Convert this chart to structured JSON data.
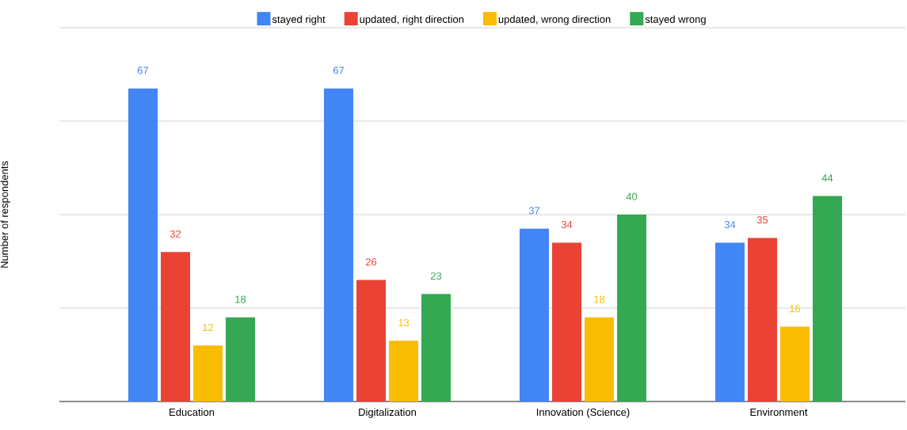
{
  "chart_data": {
    "type": "bar",
    "ylabel": "Number of respondents",
    "categories": [
      "Education",
      "Digitalization",
      "Innovation (Science)",
      "Environment"
    ],
    "series": [
      {
        "name": "stayed right",
        "color": "#4285f4",
        "values": [
          67,
          67,
          37,
          34
        ]
      },
      {
        "name": "updated, right direction",
        "color": "#ea4335",
        "values": [
          32,
          26,
          34,
          35
        ]
      },
      {
        "name": "updated, wrong direction",
        "color": "#fbbc04",
        "values": [
          12,
          13,
          18,
          16
        ]
      },
      {
        "name": "stayed wrong",
        "color": "#34a853",
        "values": [
          18,
          23,
          40,
          44
        ]
      }
    ],
    "ylim": [
      0,
      80
    ],
    "yticks": [
      {
        "value": 0,
        "label": null
      },
      {
        "value": 20,
        "label": null
      },
      {
        "value": 40,
        "label": null
      },
      {
        "value": 60,
        "label": null
      },
      {
        "value": 80,
        "label": null
      }
    ],
    "tick_labels": "x",
    "grid": "y",
    "legend": "top",
    "data_labels": true
  }
}
